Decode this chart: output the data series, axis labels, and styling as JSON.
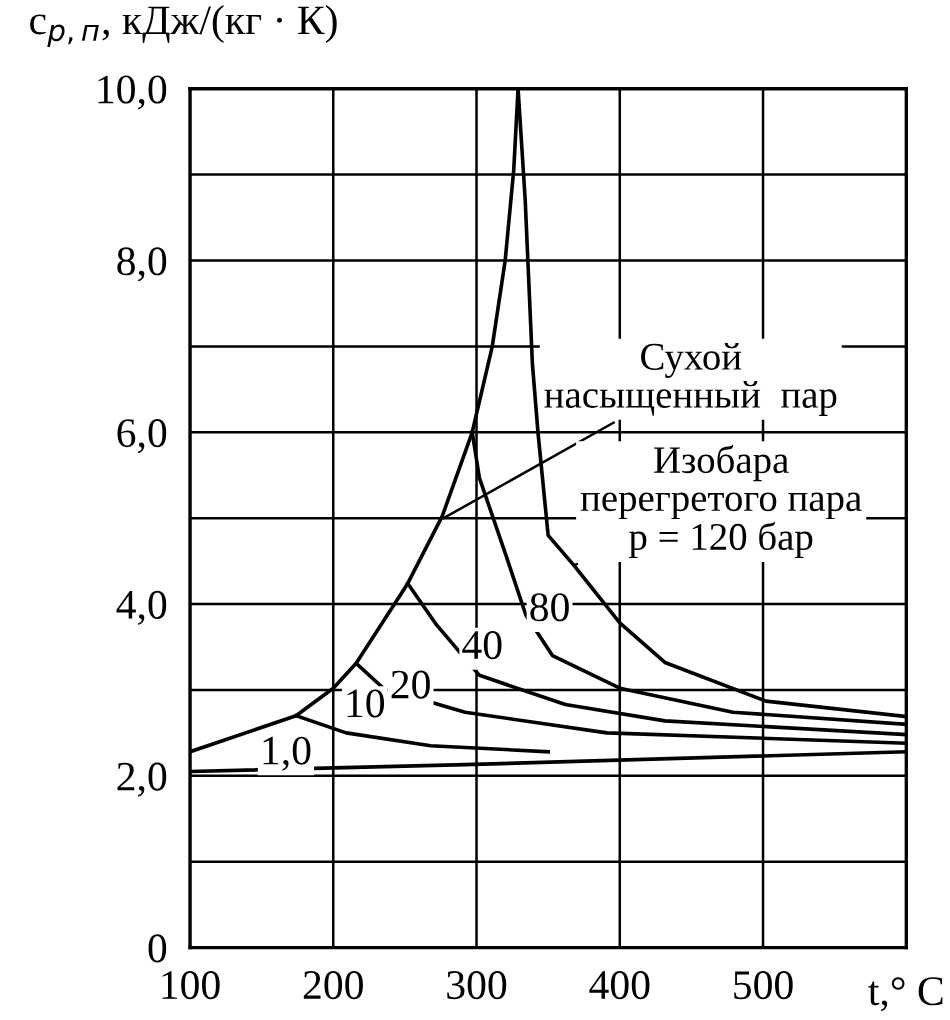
{
  "chart_data": {
    "type": "line",
    "ylabel": "c$_{p,п}$, кДж/(кг · К)",
    "xlabel": "t,° C",
    "xlim": [
      100,
      600
    ],
    "xticks": [
      100,
      200,
      300,
      400,
      500,
      {
        "value": 600,
        "label": null
      }
    ],
    "ylim": [
      0,
      10
    ],
    "yticks": [
      {
        "value": 0,
        "label": "0"
      },
      {
        "value": 1,
        "label": null
      },
      {
        "value": 2,
        "label": "2,0"
      },
      {
        "value": 3,
        "label": null
      },
      {
        "value": 4,
        "label": "4,0"
      },
      {
        "value": 5,
        "label": null
      },
      {
        "value": 6,
        "label": "6,0"
      },
      {
        "value": 7,
        "label": null
      },
      {
        "value": 8,
        "label": "8,0"
      },
      {
        "value": 9,
        "label": null
      },
      {
        "value": 10,
        "label": "10,0"
      }
    ],
    "grid": true,
    "line_style": "solid",
    "marker": "none",
    "series": [
      {
        "color": "#000000",
        "x": [
          100,
          174,
          200,
          216,
          252,
          276,
          297,
          311,
          320,
          326,
          329
        ],
        "values": [
          2.28,
          2.7,
          3.02,
          3.31,
          4.24,
          5.02,
          6.0,
          7.0,
          8.0,
          9.06,
          10
        ]
      },
      {
        "color": "#000000",
        "x": [
          329,
          334,
          339,
          343,
          350,
          368,
          400,
          431.5,
          502,
          600
        ],
        "values": [
          10,
          8.7,
          6.8,
          5.98,
          4.8,
          4.45,
          3.78,
          3.32,
          2.87,
          2.69
        ]
      },
      {
        "color": "#000000",
        "x": [
          297,
          302,
          320.5,
          334.5,
          353,
          400,
          479,
          600
        ],
        "values": [
          6.0,
          5.47,
          4.57,
          3.87,
          3.4,
          3.02,
          2.74,
          2.6
        ]
      },
      {
        "color": "#000000",
        "x": [
          252,
          272,
          302,
          362,
          431.5,
          600
        ],
        "values": [
          4.24,
          3.76,
          3.17,
          2.83,
          2.64,
          2.48
        ]
      },
      {
        "color": "#000000",
        "x": [
          216,
          235,
          292,
          391,
          600
        ],
        "values": [
          3.31,
          3.02,
          2.74,
          2.5,
          2.38
        ]
      },
      {
        "color": "#000000",
        "x": [
          174,
          209,
          268,
          350
        ],
        "values": [
          2.7,
          2.5,
          2.35,
          2.28
        ]
      },
      {
        "color": "#000000",
        "x": [
          100,
          292,
          600
        ],
        "values": [
          2.05,
          2.13,
          2.28
        ]
      }
    ],
    "annotations": [
      {
        "text": "Сухой\nнасыщенный  пар",
        "x": 277,
        "y": 5.0
      },
      {
        "text": "Изобара\nперегретого пара\np = 120 бар",
        "x": 368,
        "y": 4.45
      },
      {
        "text": "1,0",
        "x": 167,
        "y": 2.25
      },
      {
        "text": "10",
        "x": 222,
        "y": 2.8
      },
      {
        "text": "20",
        "x": 254,
        "y": 3.02
      },
      {
        "text": "40",
        "x": 304,
        "y": 3.48
      },
      {
        "text": "80",
        "x": 351,
        "y": 3.92
      }
    ]
  }
}
